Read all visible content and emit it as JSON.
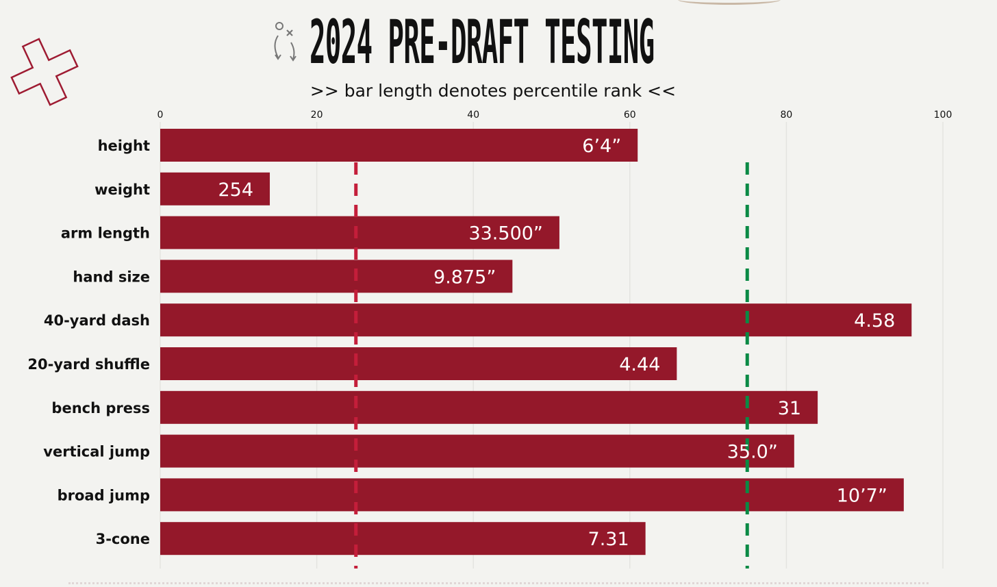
{
  "header": {
    "title": "2024 PRE-DRAFT TESTING",
    "subtitle": ">> bar length denotes percentile rank <<"
  },
  "icons": {
    "logo": "medical-cross-icon",
    "play": "play-diagram-icon"
  },
  "colors": {
    "bar": "#94182a",
    "low_threshold_line": "#c41e3a",
    "high_threshold_line": "#0a8a45",
    "grid": "#e4e4e0",
    "text": "#111111",
    "logo": "#9e1b32"
  },
  "chart_data": {
    "type": "bar",
    "orientation": "horizontal",
    "categories": [
      "height",
      "weight",
      "arm length",
      "hand size",
      "40-yard dash",
      "20-yard shuffle",
      "bench press",
      "vertical jump",
      "broad jump",
      "3-cone"
    ],
    "values": [
      61,
      14,
      51,
      45,
      96,
      66,
      84,
      81,
      95,
      62
    ],
    "data_labels": [
      "6’4”",
      "254",
      "33.500”",
      "9.875”",
      "4.58",
      "4.44",
      "31",
      "35.0”",
      "10’7”",
      "7.31"
    ],
    "xlim": [
      0,
      100
    ],
    "xticks": [
      0,
      20,
      40,
      60,
      80,
      100
    ],
    "reference_lines": [
      {
        "value": 25,
        "style": "dashed",
        "color": "#c41e3a"
      },
      {
        "value": 75,
        "style": "dashed",
        "color": "#0a8a45"
      }
    ],
    "grid": true,
    "title": "2024 PRE-DRAFT TESTING",
    "subtitle": ">> bar length denotes percentile rank <<",
    "xlabel": "",
    "ylabel": ""
  }
}
